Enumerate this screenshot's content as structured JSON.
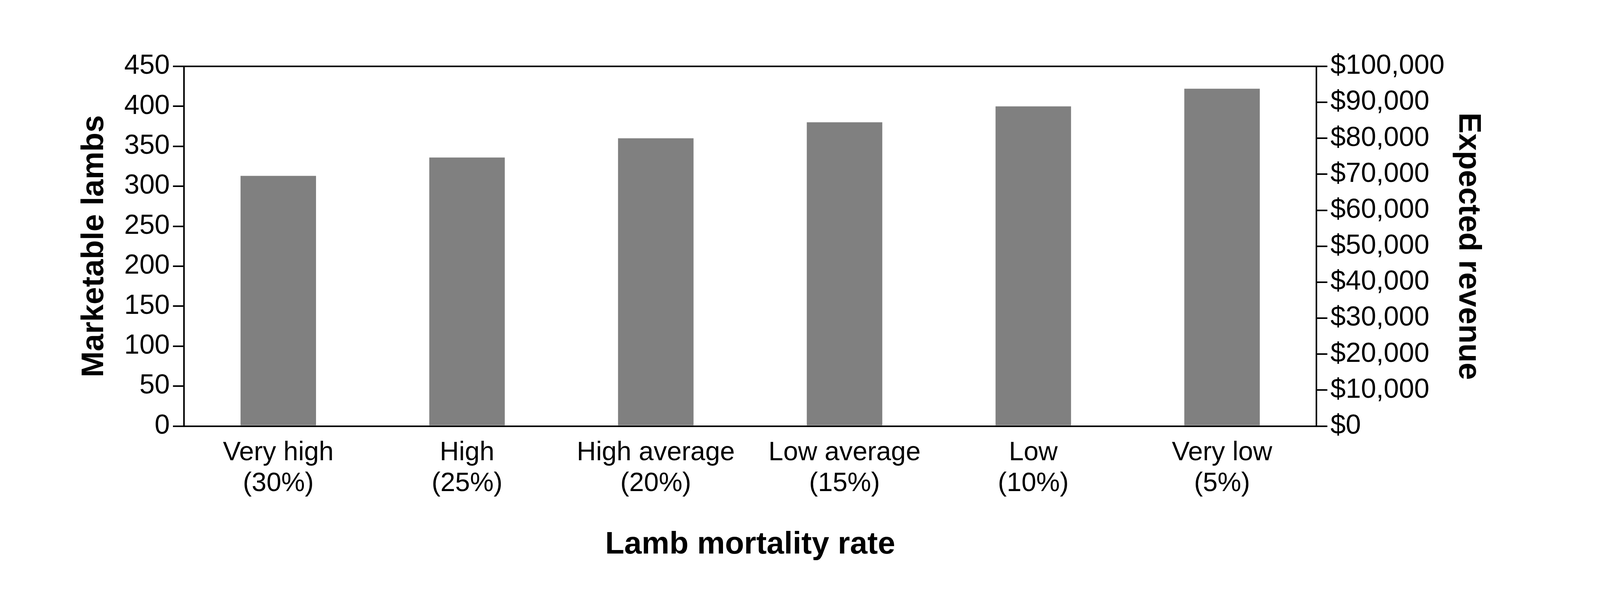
{
  "chart_data": {
    "type": "bar",
    "categories": [
      [
        "Very high",
        "(30%)"
      ],
      [
        "High",
        "(25%)"
      ],
      [
        "High average",
        "(20%)"
      ],
      [
        "Low average",
        "(15%)"
      ],
      [
        "Low",
        "(10%)"
      ],
      [
        "Very low",
        "(5%)"
      ]
    ],
    "values": [
      313,
      336,
      360,
      380,
      400,
      422
    ],
    "color": "#808080",
    "x_label": "Lamb mortality rate",
    "y_label": "Marketable lambs",
    "y2_label": "Expected revenue",
    "ylim": [
      0,
      450
    ],
    "yticks": [
      0,
      50,
      100,
      150,
      200,
      250,
      300,
      350,
      400,
      450
    ],
    "y2lim": [
      0,
      100000
    ],
    "y2ticks": [
      {
        "value": 0,
        "label": "$0"
      },
      {
        "value": 10000,
        "label": "$10,000"
      },
      {
        "value": 20000,
        "label": "$20,000"
      },
      {
        "value": 30000,
        "label": "$30,000"
      },
      {
        "value": 40000,
        "label": "$40,000"
      },
      {
        "value": 50000,
        "label": "$50,000"
      },
      {
        "value": 60000,
        "label": "$60,000"
      },
      {
        "value": 70000,
        "label": "$70,000"
      },
      {
        "value": 80000,
        "label": "$80,000"
      },
      {
        "value": 90000,
        "label": "$90,000"
      },
      {
        "value": 100000,
        "label": "$100,000"
      }
    ],
    "grid": false
  }
}
